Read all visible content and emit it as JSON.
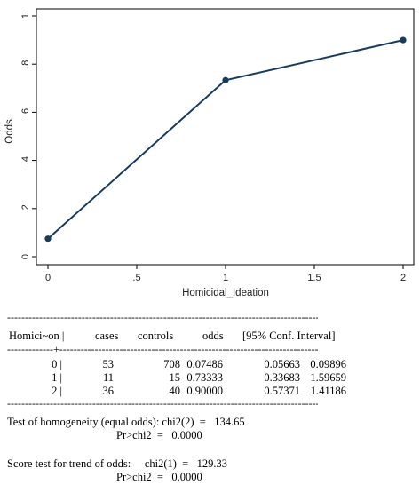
{
  "chart_data": {
    "type": "line",
    "x": [
      0,
      1,
      2
    ],
    "y": [
      0.07486,
      0.73333,
      0.9
    ],
    "xlabel": "Homicidal_Ideation",
    "ylabel": "Odds",
    "xlim": [
      0,
      2
    ],
    "ylim": [
      0,
      1
    ],
    "x_ticks": [
      0,
      0.5,
      1,
      1.5,
      2
    ],
    "x_tick_labels": [
      "0",
      ".5",
      "1",
      "1.5",
      "2"
    ],
    "y_ticks": [
      0,
      0.2,
      0.4,
      0.6,
      0.8,
      1
    ],
    "y_tick_labels": [
      "0",
      ".2",
      ".4",
      ".6",
      ".8",
      "1"
    ],
    "grid": false,
    "line_color": "#1a3a5c"
  },
  "table": {
    "headers": [
      "Homici~on |",
      "cases",
      "controls",
      "odds",
      "[95% Conf. Interval]"
    ],
    "rows": [
      {
        "label": "0 |",
        "cases": "53",
        "controls": "708",
        "odds": "0.07486",
        "ci_low": "0.05663",
        "ci_high": "0.09896"
      },
      {
        "label": "1 |",
        "cases": "11",
        "controls": "15",
        "odds": "0.73333",
        "ci_low": "0.33683",
        "ci_high": "1.59659"
      },
      {
        "label": "2 |",
        "cases": "36",
        "controls": "40",
        "odds": "0.90000",
        "ci_low": "0.57371",
        "ci_high": "1.41186"
      }
    ],
    "homogeneity_label": "Test of homogeneity (equal odds): chi2(2)  =",
    "homogeneity_value": "134.65",
    "homogeneity_p_label": "Pr>chi2  =",
    "homogeneity_p_value": "0.0000",
    "trend_label": "Score test for trend of odds:     chi2(1)  =",
    "trend_value": "129.33",
    "trend_p_label": "Pr>chi2  =",
    "trend_p_value": "0.0000"
  }
}
